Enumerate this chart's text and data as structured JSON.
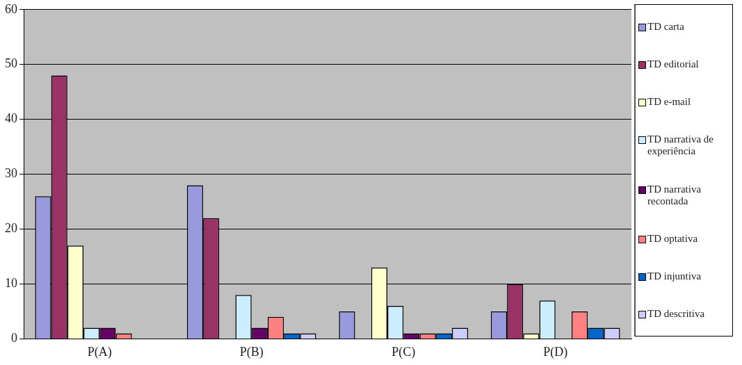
{
  "chart_data": {
    "type": "bar",
    "categories": [
      "P(A)",
      "P(B)",
      "P(C)",
      "P(D)"
    ],
    "series": [
      {
        "name": "TD carta",
        "color": "#9999dd",
        "values": [
          26,
          28,
          5,
          5
        ]
      },
      {
        "name": "TD editorial",
        "color": "#993366",
        "values": [
          48,
          22,
          0,
          10
        ]
      },
      {
        "name": "TD e-mail",
        "color": "#ffffcc",
        "values": [
          17,
          0,
          13,
          1
        ]
      },
      {
        "name": "TD narrativa de experiência",
        "color": "#ccecff",
        "values": [
          2,
          8,
          6,
          7
        ]
      },
      {
        "name": "TD narrativa recontada",
        "color": "#660066",
        "values": [
          2,
          2,
          1,
          0
        ]
      },
      {
        "name": "TD optativa",
        "color": "#ff8080",
        "values": [
          1,
          4,
          1,
          5
        ]
      },
      {
        "name": "TD injuntiva",
        "color": "#0066cc",
        "values": [
          0,
          1,
          1,
          2
        ]
      },
      {
        "name": "TD descritiva",
        "color": "#ccccff",
        "values": [
          0,
          1,
          2,
          2
        ]
      }
    ],
    "ylim": [
      0,
      60
    ],
    "yticks": [
      0,
      10,
      20,
      30,
      40,
      50,
      60
    ],
    "grid": "y",
    "legend": "right"
  }
}
